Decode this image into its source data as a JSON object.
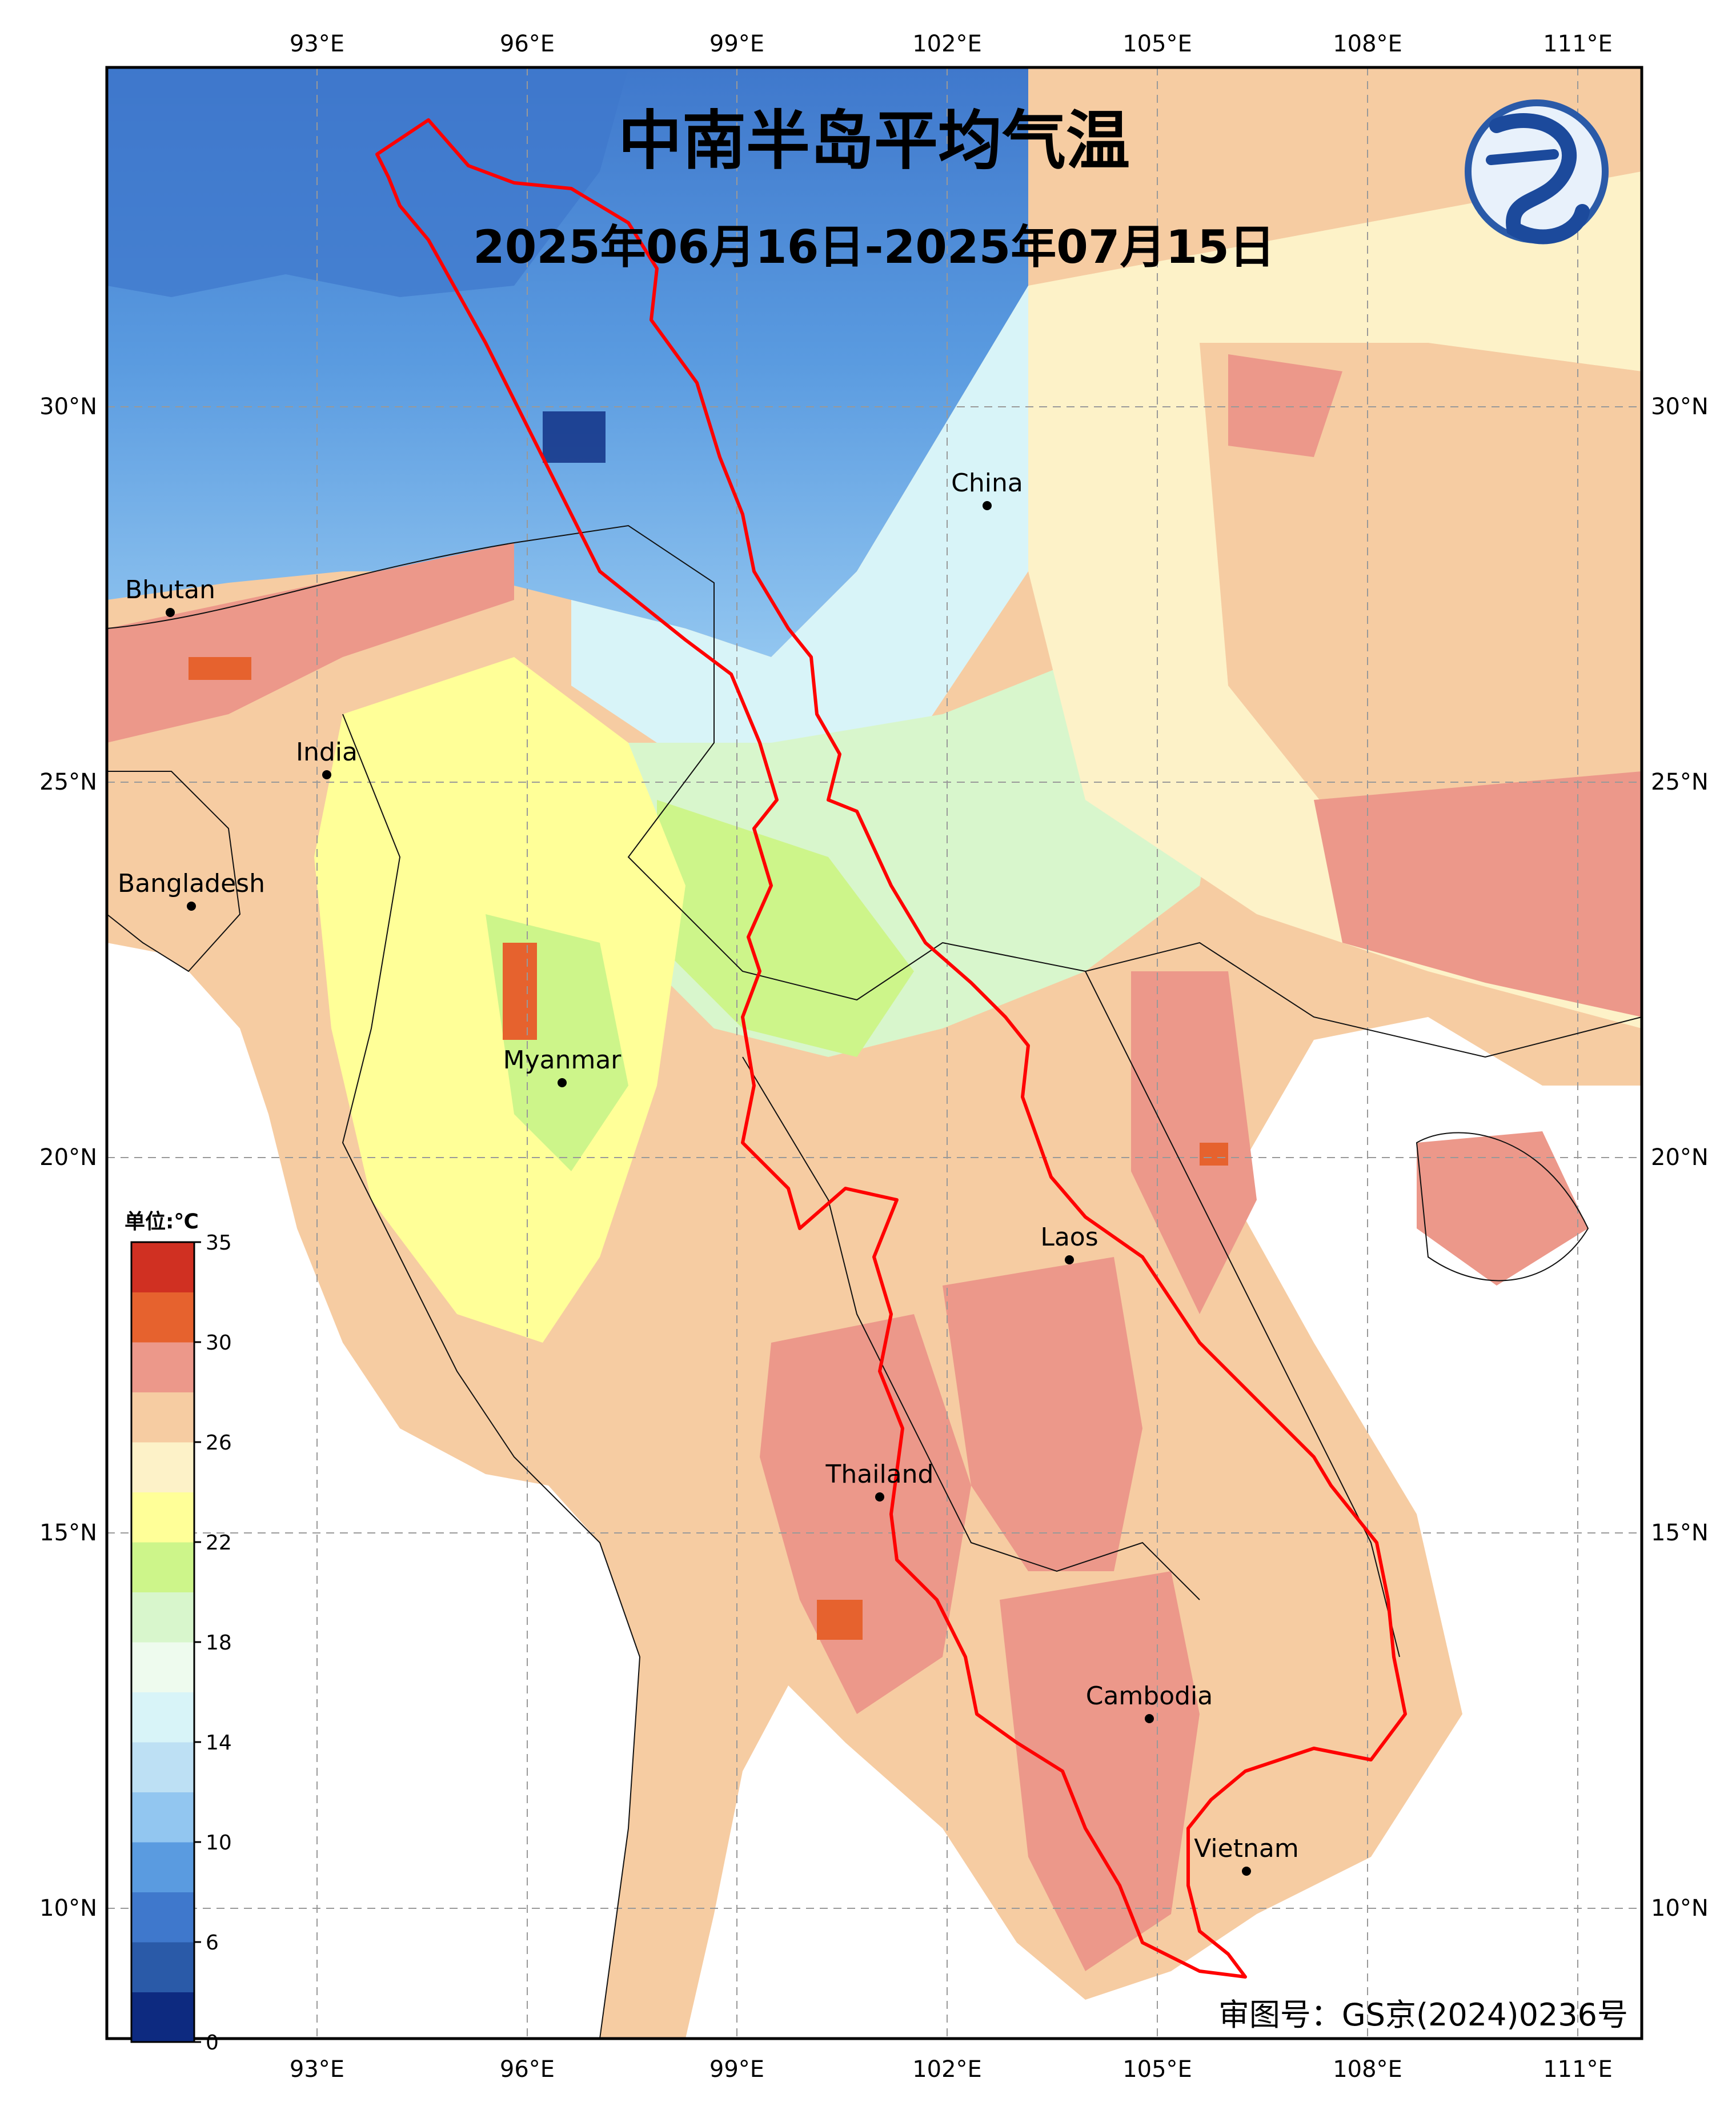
{
  "map": {
    "title": "中南半岛平均气温",
    "subtitle": "2025年06月16日-2025年07月15日",
    "approval_number": "审图号：GS京(2024)0236号",
    "lon_ticks_top": [
      "93°E",
      "96°E",
      "99°E",
      "102°E",
      "105°E",
      "108°E",
      "111°E"
    ],
    "lon_ticks_bottom": [
      "93°E",
      "96°E",
      "99°E",
      "102°E",
      "105°E",
      "108°E",
      "111°E"
    ],
    "lat_ticks_left": [
      "30°N",
      "25°N",
      "20°N",
      "15°N",
      "10°N"
    ],
    "lat_ticks_right": [
      "30°N",
      "25°N",
      "20°N",
      "15°N",
      "10°N"
    ],
    "cities": [
      {
        "name": "China",
        "lon": 102.6,
        "lat": 28.7
      },
      {
        "name": "Bhutan",
        "lon": 90.8,
        "lat": 27.4
      },
      {
        "name": "India",
        "lon": 93.1,
        "lat": 25.1
      },
      {
        "name": "Bangladesh",
        "lon": 91.0,
        "lat": 23.4
      },
      {
        "name": "Myanmar",
        "lon": 96.5,
        "lat": 21.0
      },
      {
        "name": "Laos",
        "lon": 103.9,
        "lat": 18.5
      },
      {
        "name": "Thailand",
        "lon": 101.0,
        "lat": 15.5
      },
      {
        "name": "Cambodia",
        "lon": 105.0,
        "lat": 12.6
      },
      {
        "name": "Vietnam",
        "lon": 106.3,
        "lat": 10.5
      }
    ],
    "colorbar": {
      "unit_label": "单位:℃",
      "tick_labels": [
        "35",
        "30",
        "26",
        "22",
        "18",
        "14",
        "10",
        "6",
        "0"
      ],
      "colors": [
        "#0d2a80",
        "#2a5aa8",
        "#3f78cc",
        "#5a9be0",
        "#92c6f0",
        "#bde0f4",
        "#d8f4f8",
        "#eefbee",
        "#d8f6cc",
        "#cdf58a",
        "#ffff98",
        "#fdf2c8",
        "#f6cca2",
        "#ec988a",
        "#e6622e",
        "#d03022"
      ]
    }
  }
}
